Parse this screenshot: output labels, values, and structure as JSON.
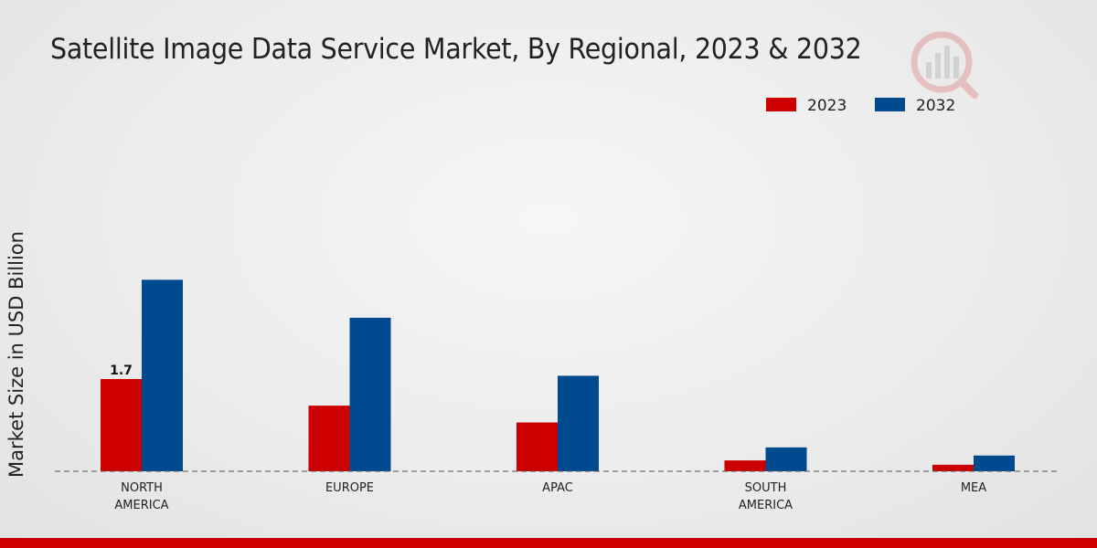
{
  "chart_data": {
    "type": "bar",
    "title": "Satellite Image Data Service Market, By Regional, 2023 & 2032",
    "xlabel": "",
    "ylabel": "Market Size in USD Billion",
    "categories": [
      "NORTH\nAMERICA",
      "EUROPE",
      "APAC",
      "SOUTH\nAMERICA",
      "MEA"
    ],
    "series": [
      {
        "name": "2023",
        "color": "#cc0000",
        "values": [
          1.7,
          1.21,
          0.9,
          0.2,
          0.12
        ]
      },
      {
        "name": "2032",
        "color": "#004a8f",
        "values": [
          3.53,
          2.83,
          1.76,
          0.44,
          0.29
        ]
      }
    ],
    "data_labels": [
      {
        "series": 0,
        "category": 0,
        "text": "1.7"
      }
    ],
    "ylim": [
      0,
      6.5
    ],
    "grid": false,
    "legend_position": "top-right"
  }
}
